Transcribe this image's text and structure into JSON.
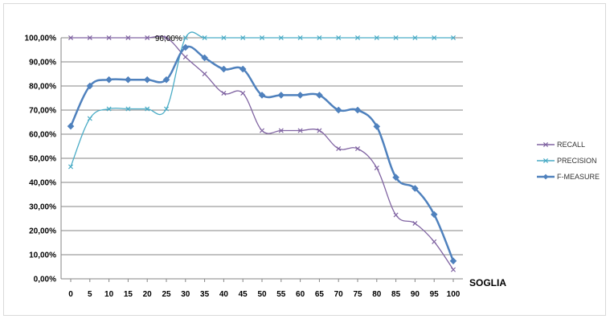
{
  "chart_data": {
    "type": "line",
    "title": "",
    "xlabel": "SOGLIA",
    "ylabel": "",
    "x": [
      0,
      5,
      10,
      15,
      20,
      25,
      30,
      35,
      40,
      45,
      50,
      55,
      60,
      65,
      70,
      75,
      80,
      85,
      90,
      95,
      100
    ],
    "ylim": [
      0,
      100
    ],
    "y_ticks": [
      "0,00%",
      "10,00%",
      "20,00%",
      "30,00%",
      "40,00%",
      "50,00%",
      "60,00%",
      "70,00%",
      "80,00%",
      "90,00%",
      "100,00%"
    ],
    "grid": "horizontal",
    "legend_position": "right",
    "series": [
      {
        "name": "RECALL",
        "color": "#8064a2",
        "marker": "x",
        "values": [
          100,
          100,
          100,
          100,
          100,
          100,
          92,
          85,
          77,
          77,
          61.5,
          61.5,
          61.5,
          61.5,
          54,
          54,
          46,
          26.5,
          23,
          15.4,
          3.8
        ]
      },
      {
        "name": "PRECISION",
        "color": "#4bacc6",
        "marker": "x",
        "values": [
          46.5,
          66.5,
          70.5,
          70.5,
          70.5,
          70.5,
          100,
          100,
          100,
          100,
          100,
          100,
          100,
          100,
          100,
          100,
          100,
          100,
          100,
          100,
          100
        ]
      },
      {
        "name": "F-MEASURE",
        "color": "#4f81bd",
        "marker": "diamond",
        "values": [
          63.3,
          80,
          82.6,
          82.6,
          82.6,
          82.6,
          96,
          91.7,
          87,
          87,
          76.2,
          76.2,
          76.2,
          76.2,
          70,
          70,
          63.2,
          42.1,
          37.5,
          26.7,
          7.4
        ]
      }
    ],
    "annotations": [
      {
        "text": "96,00%",
        "series": "F-MEASURE",
        "x": 30
      }
    ]
  }
}
